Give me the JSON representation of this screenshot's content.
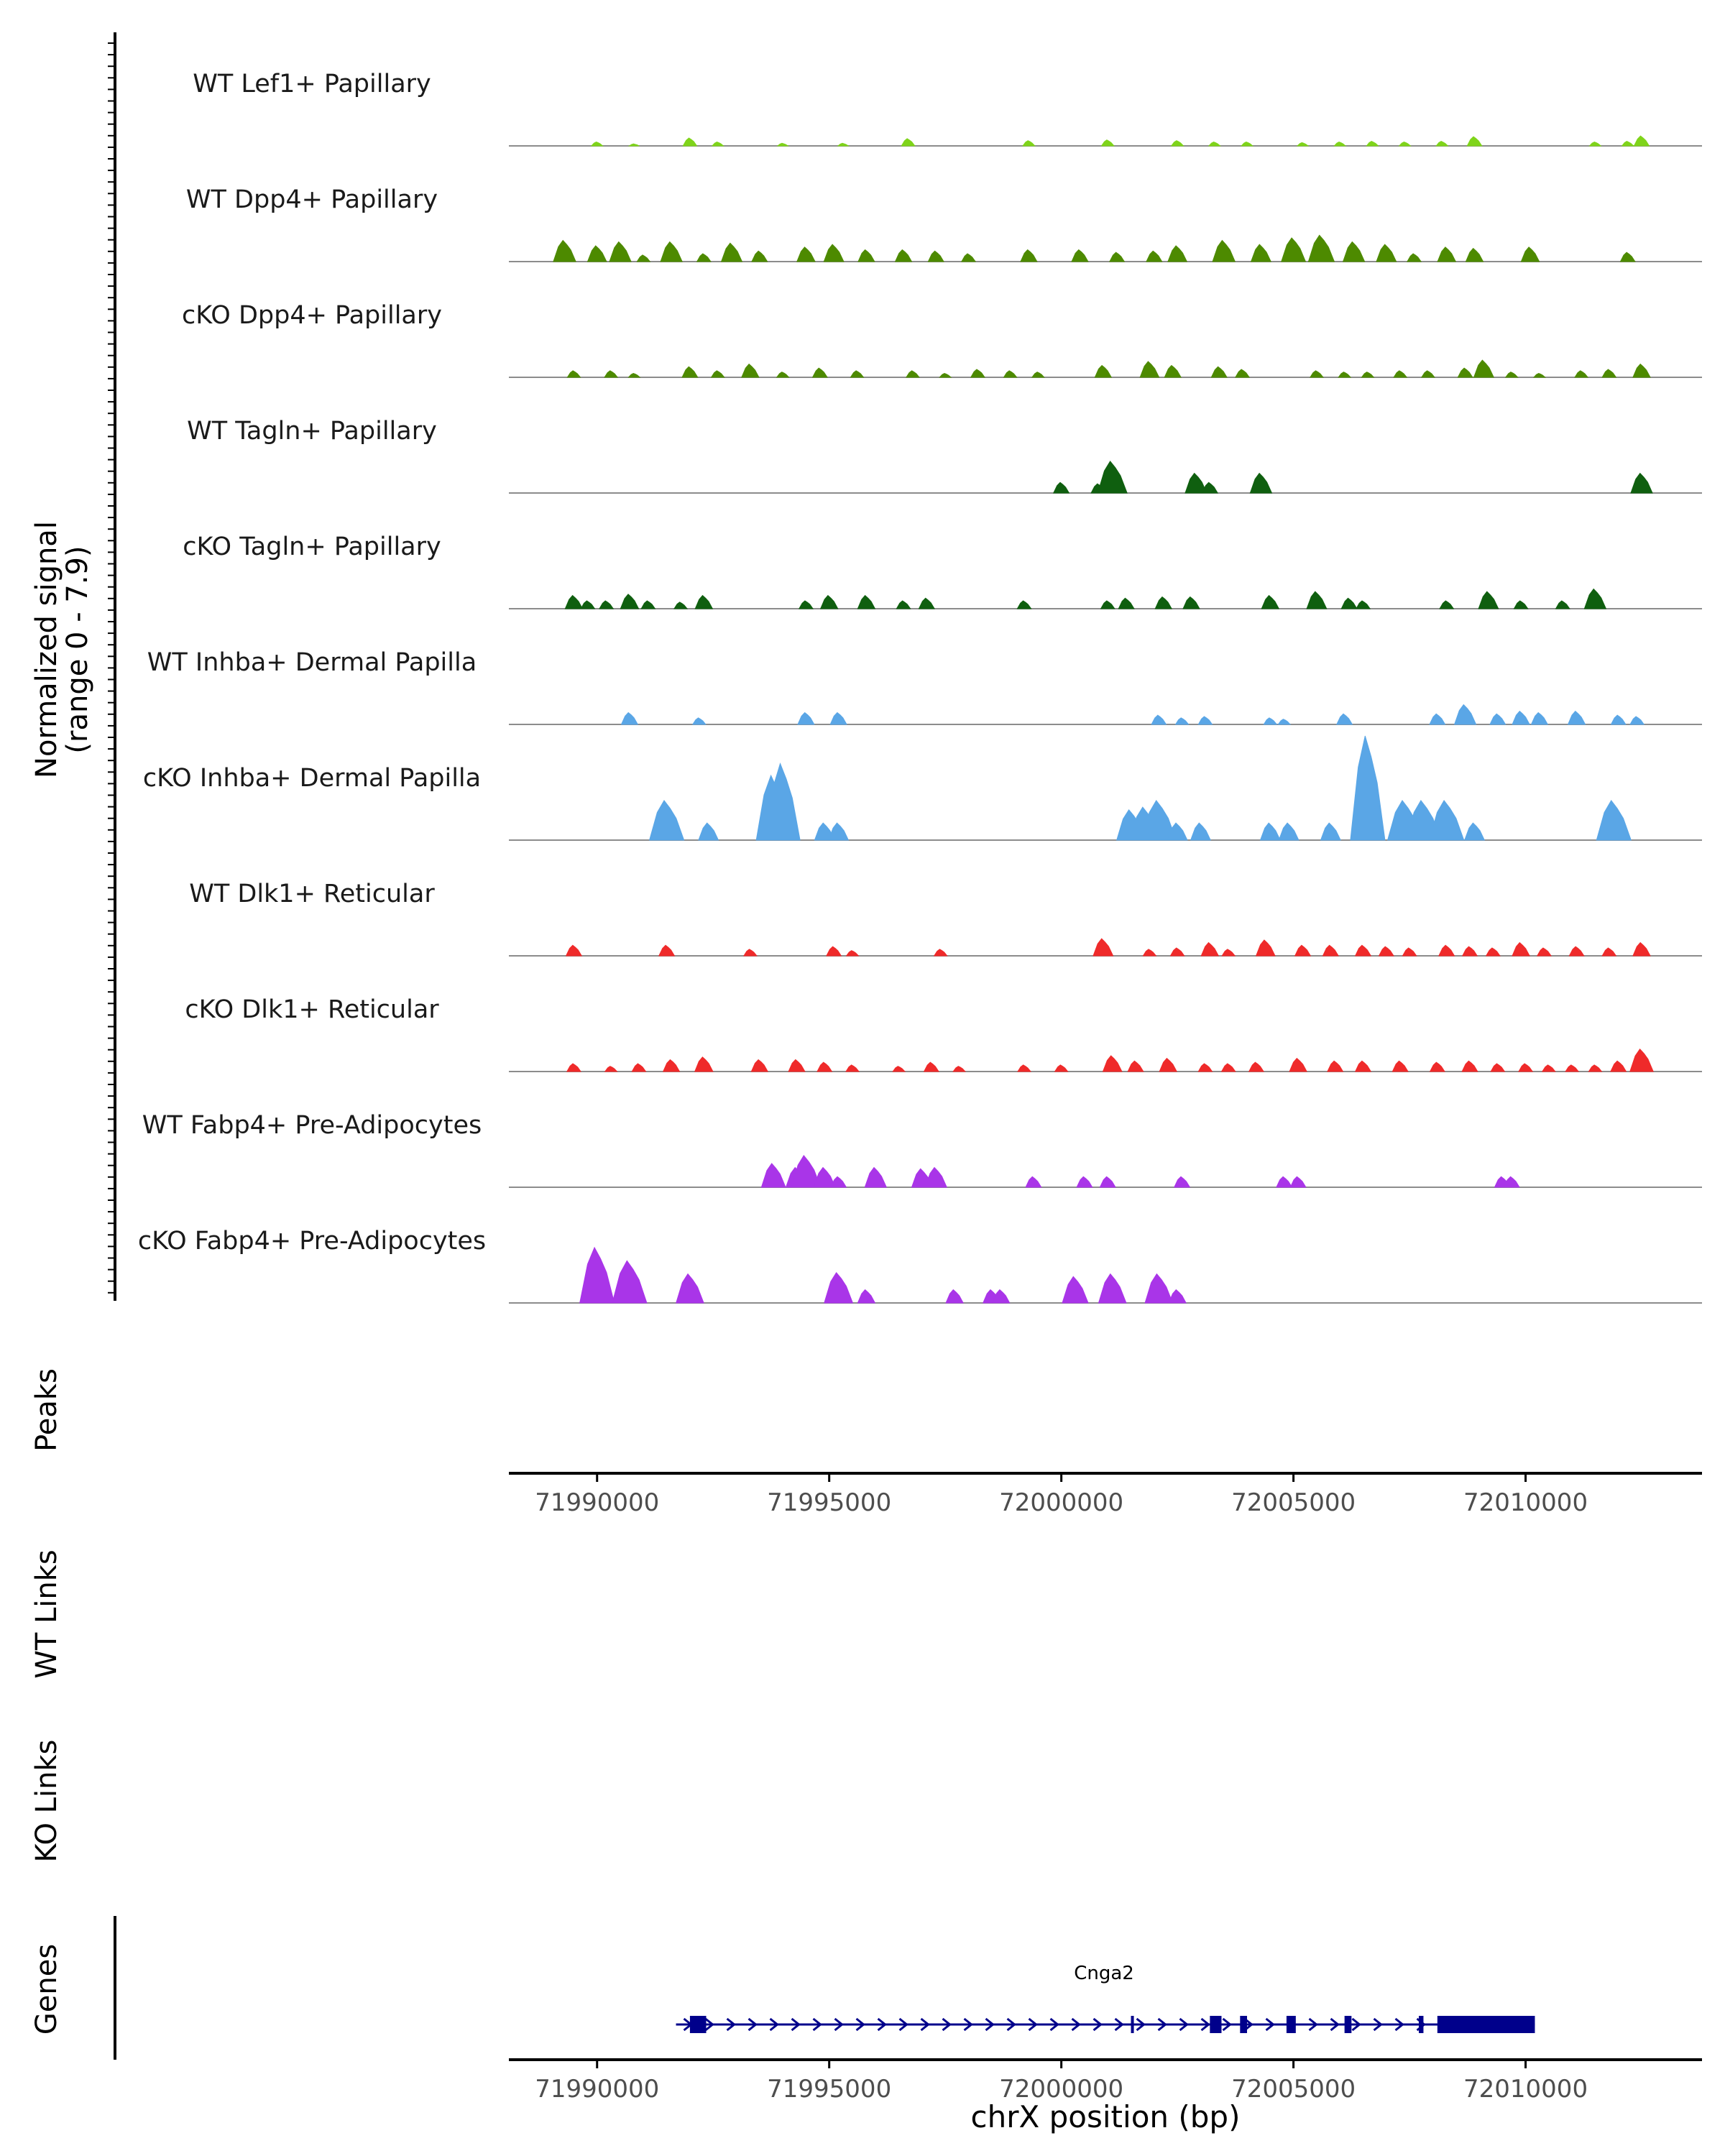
{
  "chart_data": {
    "type": "area",
    "title": "",
    "xlabel": "chrX position (bp)",
    "ylabel": "Normalized signal\n(range 0 - 7.9)",
    "ylabel_lines": [
      "Normalized signal",
      "(range 0 - 7.9)"
    ],
    "y_range": [
      0,
      7.9
    ],
    "xlim": [
      71988100,
      72013800
    ],
    "x_ticks": [
      71990000,
      71995000,
      72000000,
      72005000,
      72010000
    ],
    "x_tick_labels": [
      "71990000",
      "71995000",
      "72000000",
      "72005000",
      "72010000"
    ],
    "panels": [
      "Peaks",
      "WT Links",
      "KO Links",
      "Genes"
    ],
    "gene": {
      "name": "Cnga2",
      "strand": "+",
      "start": 71991700,
      "end": 72010200,
      "exons": [
        {
          "start": 71992000,
          "end": 71992350
        },
        {
          "start": 72001500,
          "end": 72001560
        },
        {
          "start": 72003200,
          "end": 72003450
        },
        {
          "start": 72003850,
          "end": 72004000
        },
        {
          "start": 72004850,
          "end": 72005050
        },
        {
          "start": 72006100,
          "end": 72006250
        },
        {
          "start": 72007700,
          "end": 72007800
        },
        {
          "start": 72008100,
          "end": 72010200
        }
      ]
    },
    "series": [
      {
        "name": "WT Lef1+ Papillary",
        "color": "#7fd41a",
        "peaks": [
          [
            71990000,
            0.3
          ],
          [
            71990800,
            0.15
          ],
          [
            71992000,
            0.6
          ],
          [
            71992600,
            0.3
          ],
          [
            71994000,
            0.2
          ],
          [
            71995300,
            0.2
          ],
          [
            71996700,
            0.55
          ],
          [
            71999300,
            0.4
          ],
          [
            72001000,
            0.45
          ],
          [
            72002500,
            0.4
          ],
          [
            72003300,
            0.3
          ],
          [
            72004000,
            0.3
          ],
          [
            72005200,
            0.25
          ],
          [
            72006000,
            0.3
          ],
          [
            72006700,
            0.35
          ],
          [
            72007400,
            0.3
          ],
          [
            72008200,
            0.35
          ],
          [
            72008900,
            0.7
          ],
          [
            72011500,
            0.3
          ],
          [
            72012200,
            0.35
          ],
          [
            72012500,
            0.75
          ]
        ]
      },
      {
        "name": "WT Dpp4+ Papillary",
        "color": "#4d8a00",
        "peaks": [
          [
            71989300,
            1.6
          ],
          [
            71990000,
            1.2
          ],
          [
            71990500,
            1.5
          ],
          [
            71991000,
            0.5
          ],
          [
            71991600,
            1.5
          ],
          [
            71992300,
            0.6
          ],
          [
            71992900,
            1.4
          ],
          [
            71993500,
            0.8
          ],
          [
            71994500,
            1.1
          ],
          [
            71995100,
            1.3
          ],
          [
            71995800,
            0.9
          ],
          [
            71996600,
            0.9
          ],
          [
            71997300,
            0.8
          ],
          [
            71998000,
            0.6
          ],
          [
            71999300,
            0.9
          ],
          [
            72000400,
            0.9
          ],
          [
            72001200,
            0.7
          ],
          [
            72002000,
            0.8
          ],
          [
            72002500,
            1.2
          ],
          [
            72003500,
            1.6
          ],
          [
            72004300,
            1.3
          ],
          [
            72005000,
            1.8
          ],
          [
            72005600,
            2.0
          ],
          [
            72006300,
            1.5
          ],
          [
            72007000,
            1.3
          ],
          [
            72007600,
            0.6
          ],
          [
            72008300,
            1.1
          ],
          [
            72008900,
            1.0
          ],
          [
            72010100,
            1.1
          ],
          [
            72012200,
            0.7
          ]
        ]
      },
      {
        "name": "cKO Dpp4+ Papillary",
        "color": "#4d8a00",
        "peaks": [
          [
            71989500,
            0.5
          ],
          [
            71990300,
            0.5
          ],
          [
            71990800,
            0.3
          ],
          [
            71992000,
            0.8
          ],
          [
            71992600,
            0.5
          ],
          [
            71993300,
            1.0
          ],
          [
            71994000,
            0.4
          ],
          [
            71994800,
            0.7
          ],
          [
            71995600,
            0.5
          ],
          [
            71996800,
            0.5
          ],
          [
            71997500,
            0.3
          ],
          [
            71998200,
            0.6
          ],
          [
            71998900,
            0.5
          ],
          [
            71999500,
            0.4
          ],
          [
            72000900,
            0.9
          ],
          [
            72001900,
            1.2
          ],
          [
            72002400,
            0.9
          ],
          [
            72003400,
            0.8
          ],
          [
            72003900,
            0.6
          ],
          [
            72005500,
            0.5
          ],
          [
            72006100,
            0.4
          ],
          [
            72006600,
            0.4
          ],
          [
            72007300,
            0.5
          ],
          [
            72007900,
            0.5
          ],
          [
            72008700,
            0.7
          ],
          [
            72009100,
            1.3
          ],
          [
            72009700,
            0.4
          ],
          [
            72010300,
            0.3
          ],
          [
            72011200,
            0.5
          ],
          [
            72011800,
            0.6
          ],
          [
            72012500,
            1.0
          ]
        ]
      },
      {
        "name": "WT Tagln+ Papillary",
        "color": "#0f5f0f",
        "peaks": [
          [
            72000000,
            0.8
          ],
          [
            72000800,
            0.7
          ],
          [
            72001100,
            2.4
          ],
          [
            72002900,
            1.5
          ],
          [
            72003200,
            0.8
          ],
          [
            72004300,
            1.5
          ],
          [
            72012500,
            1.5
          ]
        ]
      },
      {
        "name": "cKO Tagln+ Papillary",
        "color": "#0f5f0f",
        "peaks": [
          [
            71989500,
            1.0
          ],
          [
            71989800,
            0.6
          ],
          [
            71990200,
            0.6
          ],
          [
            71990700,
            1.1
          ],
          [
            71991100,
            0.6
          ],
          [
            71991800,
            0.5
          ],
          [
            71992300,
            1.0
          ],
          [
            71994500,
            0.6
          ],
          [
            71995000,
            1.0
          ],
          [
            71995800,
            1.0
          ],
          [
            71996600,
            0.6
          ],
          [
            71997100,
            0.8
          ],
          [
            71999200,
            0.6
          ],
          [
            72001000,
            0.6
          ],
          [
            72001400,
            0.8
          ],
          [
            72002200,
            0.9
          ],
          [
            72002800,
            0.9
          ],
          [
            72004500,
            1.0
          ],
          [
            72005500,
            1.3
          ],
          [
            72006200,
            0.8
          ],
          [
            72006500,
            0.6
          ],
          [
            72008300,
            0.6
          ],
          [
            72009200,
            1.3
          ],
          [
            72009900,
            0.6
          ],
          [
            72010800,
            0.6
          ],
          [
            72011500,
            1.5
          ]
        ]
      },
      {
        "name": "WT Inhba+ Dermal Papilla",
        "color": "#5aa6e6",
        "peaks": [
          [
            71990700,
            0.9
          ],
          [
            71992200,
            0.5
          ],
          [
            71994500,
            0.9
          ],
          [
            71995200,
            0.9
          ],
          [
            72002100,
            0.7
          ],
          [
            72002600,
            0.5
          ],
          [
            72003100,
            0.6
          ],
          [
            72004500,
            0.5
          ],
          [
            72004800,
            0.4
          ],
          [
            72006100,
            0.8
          ],
          [
            72008100,
            0.8
          ],
          [
            72008700,
            1.5
          ],
          [
            72009400,
            0.8
          ],
          [
            72009900,
            1.0
          ],
          [
            72010300,
            0.9
          ],
          [
            72011100,
            1.0
          ],
          [
            72012000,
            0.7
          ],
          [
            72012400,
            0.6
          ]
        ]
      },
      {
        "name": "cKO Inhba+ Dermal Papilla",
        "color": "#5aa6e6",
        "peaks": [
          [
            71991500,
            3.0
          ],
          [
            71992400,
            1.3
          ],
          [
            71993800,
            4.9
          ],
          [
            71994000,
            5.8
          ],
          [
            71994900,
            1.3
          ],
          [
            71995200,
            1.3
          ],
          [
            72001500,
            2.3
          ],
          [
            72001800,
            2.5
          ],
          [
            72002100,
            3.0
          ],
          [
            72002500,
            1.3
          ],
          [
            72003000,
            1.3
          ],
          [
            72004500,
            1.3
          ],
          [
            72004900,
            1.3
          ],
          [
            72005800,
            1.3
          ],
          [
            72006600,
            7.9
          ],
          [
            72007400,
            3.0
          ],
          [
            72007800,
            3.0
          ],
          [
            72008300,
            3.0
          ],
          [
            72008900,
            1.3
          ],
          [
            72011900,
            3.0
          ]
        ]
      },
      {
        "name": "WT Dlk1+ Reticular",
        "color": "#ef2a2a",
        "peaks": [
          [
            71989500,
            0.8
          ],
          [
            71991500,
            0.8
          ],
          [
            71993300,
            0.5
          ],
          [
            71995100,
            0.7
          ],
          [
            71995500,
            0.4
          ],
          [
            71997400,
            0.5
          ],
          [
            72000900,
            1.3
          ],
          [
            72001900,
            0.5
          ],
          [
            72002500,
            0.6
          ],
          [
            72003200,
            1.0
          ],
          [
            72003600,
            0.5
          ],
          [
            72004400,
            1.2
          ],
          [
            72005200,
            0.8
          ],
          [
            72005800,
            0.8
          ],
          [
            72006500,
            0.8
          ],
          [
            72007000,
            0.7
          ],
          [
            72007500,
            0.6
          ],
          [
            72008300,
            0.8
          ],
          [
            72008800,
            0.7
          ],
          [
            72009300,
            0.6
          ],
          [
            72009900,
            1.0
          ],
          [
            72010400,
            0.6
          ],
          [
            72011100,
            0.7
          ],
          [
            72011800,
            0.6
          ],
          [
            72012500,
            1.0
          ]
        ]
      },
      {
        "name": "cKO Dlk1+ Reticular",
        "color": "#ef2a2a",
        "peaks": [
          [
            71989500,
            0.6
          ],
          [
            71990300,
            0.4
          ],
          [
            71990900,
            0.6
          ],
          [
            71991600,
            0.9
          ],
          [
            71992300,
            1.1
          ],
          [
            71993500,
            0.9
          ],
          [
            71994300,
            0.9
          ],
          [
            71994900,
            0.7
          ],
          [
            71995500,
            0.5
          ],
          [
            71996500,
            0.4
          ],
          [
            71997200,
            0.7
          ],
          [
            71997800,
            0.4
          ],
          [
            71999200,
            0.5
          ],
          [
            72000000,
            0.5
          ],
          [
            72001100,
            1.2
          ],
          [
            72001600,
            0.8
          ],
          [
            72002300,
            1.0
          ],
          [
            72003100,
            0.6
          ],
          [
            72003600,
            0.6
          ],
          [
            72004200,
            0.7
          ],
          [
            72005100,
            1.0
          ],
          [
            72005900,
            0.8
          ],
          [
            72006500,
            0.8
          ],
          [
            72007300,
            0.8
          ],
          [
            72008100,
            0.7
          ],
          [
            72008800,
            0.8
          ],
          [
            72009400,
            0.6
          ],
          [
            72010000,
            0.6
          ],
          [
            72010500,
            0.5
          ],
          [
            72011000,
            0.5
          ],
          [
            72011500,
            0.5
          ],
          [
            72012000,
            0.8
          ],
          [
            72012500,
            1.7
          ]
        ]
      },
      {
        "name": "WT Fabp4+ Pre-Adipocytes",
        "color": "#a935e8",
        "peaks": [
          [
            71993800,
            1.8
          ],
          [
            71994300,
            1.5
          ],
          [
            71994500,
            2.4
          ],
          [
            71994900,
            1.5
          ],
          [
            71995200,
            0.8
          ],
          [
            71996000,
            1.5
          ],
          [
            71997000,
            1.4
          ],
          [
            71997300,
            1.5
          ],
          [
            71999400,
            0.8
          ],
          [
            72000500,
            0.8
          ],
          [
            72001000,
            0.8
          ],
          [
            72002600,
            0.8
          ],
          [
            72004800,
            0.8
          ],
          [
            72005100,
            0.8
          ],
          [
            72009500,
            0.8
          ],
          [
            72009700,
            0.8
          ]
        ]
      },
      {
        "name": "cKO Fabp4+ Pre-Adipocytes",
        "color": "#a935e8",
        "peaks": [
          [
            71990000,
            4.2
          ],
          [
            71990700,
            3.2
          ],
          [
            71992000,
            2.2
          ],
          [
            71995200,
            2.3
          ],
          [
            71995800,
            1.0
          ],
          [
            71997700,
            1.0
          ],
          [
            71998500,
            1.0
          ],
          [
            71998700,
            1.0
          ],
          [
            72000300,
            2.0
          ],
          [
            72001100,
            2.2
          ],
          [
            72002100,
            2.2
          ],
          [
            72002500,
            1.0
          ]
        ]
      }
    ]
  }
}
